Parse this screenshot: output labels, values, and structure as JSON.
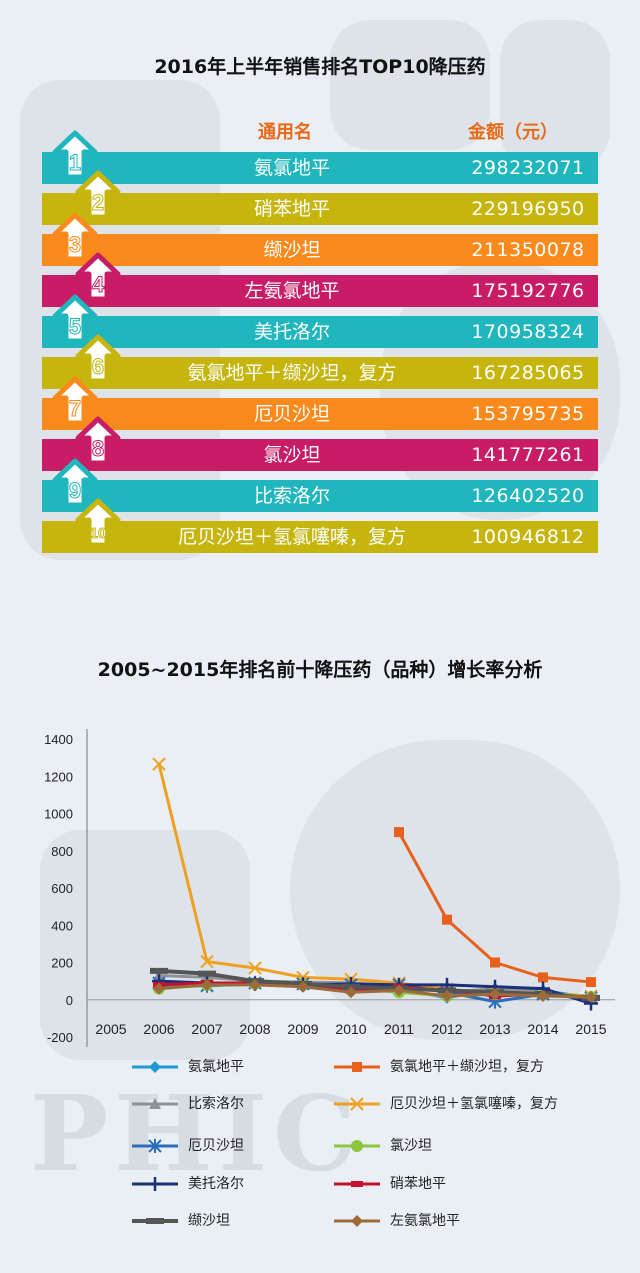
{
  "colors": {
    "teal": "#1fb6bd",
    "olive": "#c5b50d",
    "orange": "#fa8a1b",
    "magenta": "#c91c67",
    "header_text": "#e86a17"
  },
  "watermark": "PHIC",
  "ranking": {
    "title": "2016年上半年销售排名TOP10降压药",
    "header_name": "通用名",
    "header_amount": "金额（元）",
    "rows": [
      {
        "rank": "1",
        "name": "氨氯地平",
        "amount": "298232071",
        "color": "#1fb6bd"
      },
      {
        "rank": "2",
        "name": "硝苯地平",
        "amount": "229196950",
        "color": "#c5b50d"
      },
      {
        "rank": "3",
        "name": "缬沙坦",
        "amount": "211350078",
        "color": "#fa8a1b"
      },
      {
        "rank": "4",
        "name": "左氨氯地平",
        "amount": "175192776",
        "color": "#c91c67"
      },
      {
        "rank": "5",
        "name": "美托洛尔",
        "amount": "170958324",
        "color": "#1fb6bd"
      },
      {
        "rank": "6",
        "name": "氨氯地平＋缬沙坦，复方",
        "amount": "167285065",
        "color": "#c5b50d"
      },
      {
        "rank": "7",
        "name": "厄贝沙坦",
        "amount": "153795735",
        "color": "#fa8a1b"
      },
      {
        "rank": "8",
        "name": "氯沙坦",
        "amount": "141777261",
        "color": "#c91c67"
      },
      {
        "rank": "9",
        "name": "比索洛尔",
        "amount": "126402520",
        "color": "#1fb6bd"
      },
      {
        "rank": "10",
        "name": "厄贝沙坦＋氢氯噻嗪，复方",
        "amount": "100946812",
        "color": "#c5b50d"
      }
    ]
  },
  "chart_data": {
    "type": "line",
    "title": "2005~2015年排名前十降压药（品种）增长率分析",
    "xlabel": "",
    "ylabel": "",
    "x": [
      "2005",
      "2006",
      "2007",
      "2008",
      "2009",
      "2010",
      "2011",
      "2012",
      "2013",
      "2014",
      "2015"
    ],
    "ylim": [
      -200,
      1400
    ],
    "yticks": [
      -200,
      0,
      200,
      400,
      600,
      800,
      1000,
      1200,
      1400
    ],
    "grid": false,
    "legend": "bottom",
    "series": [
      {
        "name": "氨氯地平",
        "color": "#1f9ad6",
        "marker": "diamond",
        "values": [
          null,
          70,
          75,
          85,
          80,
          70,
          60,
          10,
          60,
          50,
          10
        ]
      },
      {
        "name": "氨氯地平＋缬沙坦，复方",
        "color": "#e8601c",
        "marker": "square",
        "values": [
          null,
          null,
          null,
          null,
          null,
          null,
          900,
          430,
          200,
          120,
          95
        ]
      },
      {
        "name": "比索洛尔",
        "color": "#8e9296",
        "marker": "triangle",
        "values": [
          null,
          130,
          120,
          100,
          95,
          90,
          75,
          40,
          60,
          40,
          10
        ]
      },
      {
        "name": "厄贝沙坦＋氢氯噻嗪，复方",
        "color": "#f0a020",
        "marker": "x",
        "values": [
          null,
          1265,
          205,
          170,
          120,
          110,
          90,
          55,
          40,
          35,
          20
        ]
      },
      {
        "name": "厄贝沙坦",
        "color": "#2a6ebc",
        "marker": "star",
        "values": [
          null,
          90,
          75,
          90,
          85,
          80,
          80,
          40,
          -10,
          30,
          10
        ]
      },
      {
        "name": "氯沙坦",
        "color": "#8cc63f",
        "marker": "circle",
        "values": [
          null,
          60,
          80,
          85,
          80,
          60,
          40,
          20,
          30,
          35,
          15
        ]
      },
      {
        "name": "美托洛尔",
        "color": "#1c2f7a",
        "marker": "plus",
        "values": [
          null,
          100,
          90,
          85,
          80,
          85,
          80,
          80,
          70,
          60,
          -20
        ]
      },
      {
        "name": "硝苯地平",
        "color": "#c8102e",
        "marker": "dash",
        "values": [
          null,
          80,
          90,
          90,
          80,
          50,
          70,
          50,
          20,
          30,
          10
        ]
      },
      {
        "name": "缬沙坦",
        "color": "#555555",
        "marker": "bar",
        "values": [
          null,
          155,
          140,
          100,
          85,
          70,
          60,
          50,
          40,
          30,
          10
        ]
      },
      {
        "name": "左氨氯地平",
        "color": "#9c6b3c",
        "marker": "diamond",
        "values": [
          null,
          60,
          80,
          80,
          70,
          40,
          50,
          20,
          30,
          20,
          15
        ]
      }
    ]
  }
}
